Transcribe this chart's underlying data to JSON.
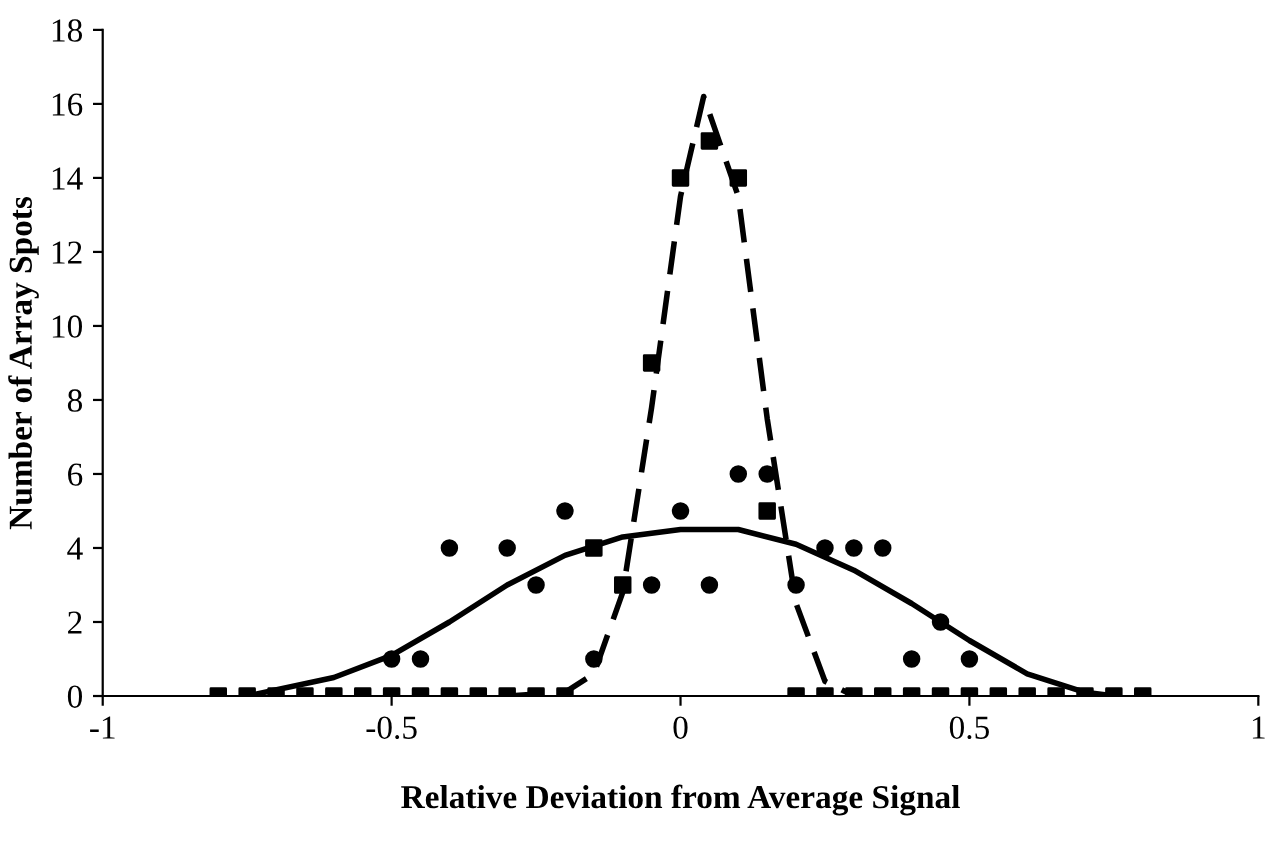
{
  "chart_data": {
    "type": "scatter",
    "xlabel": "Relative Deviation from Average Signal",
    "ylabel": "Number of Array Spots",
    "xlim": [
      -1,
      1
    ],
    "xticks": [
      -1,
      -0.5,
      0,
      0.5,
      1
    ],
    "ylim": [
      0,
      18
    ],
    "yticks": [
      0,
      2,
      4,
      6,
      8,
      10,
      12,
      14,
      16,
      18
    ],
    "grid": false,
    "legend": false,
    "series": [
      {
        "marker": "square",
        "color": "#000000",
        "x": [
          -0.8,
          -0.75,
          -0.7,
          -0.65,
          -0.6,
          -0.55,
          -0.5,
          -0.45,
          -0.4,
          -0.35,
          -0.3,
          -0.25,
          -0.2,
          -0.15,
          -0.1,
          -0.05,
          0,
          0.05,
          0.1,
          0.15,
          0.2,
          0.25,
          0.3,
          0.35,
          0.4,
          0.45,
          0.5,
          0.55,
          0.6,
          0.65,
          0.7,
          0.75,
          0.8
        ],
        "values": [
          0,
          0,
          0,
          0,
          0,
          0,
          0,
          0,
          0,
          0,
          0,
          0,
          0,
          4,
          3,
          9,
          14,
          15,
          14,
          5,
          0,
          0,
          0,
          0,
          0,
          0,
          0,
          0,
          0,
          0,
          0,
          0,
          0
        ]
      },
      {
        "marker": "circle",
        "color": "#000000",
        "x": [
          -0.5,
          -0.45,
          -0.4,
          -0.3,
          -0.25,
          -0.2,
          -0.15,
          -0.05,
          0,
          0.05,
          0.1,
          0.15,
          0.2,
          0.25,
          0.3,
          0.35,
          0.4,
          0.45,
          0.5
        ],
        "values": [
          1,
          1,
          4,
          4,
          3,
          5,
          1,
          3,
          5,
          3,
          6,
          6,
          3,
          4,
          4,
          4,
          1,
          2,
          1
        ]
      },
      {
        "type": "line",
        "line_style": "solid",
        "color": "#000000",
        "x": [
          -0.75,
          -0.6,
          -0.5,
          -0.4,
          -0.3,
          -0.2,
          -0.1,
          0,
          0.1,
          0.2,
          0.3,
          0.4,
          0.5,
          0.6,
          0.7,
          0.75
        ],
        "values": [
          0,
          0.5,
          1.1,
          2,
          3,
          3.8,
          4.3,
          4.5,
          4.5,
          4.1,
          3.4,
          2.5,
          1.5,
          0.6,
          0.1,
          0
        ]
      },
      {
        "type": "line",
        "line_style": "dashed",
        "color": "#000000",
        "x": [
          -0.3,
          -0.2,
          -0.15,
          -0.1,
          -0.05,
          0,
          0.04,
          0.1,
          0.15,
          0.2,
          0.25,
          0.3
        ],
        "values": [
          0,
          0.1,
          0.6,
          2.8,
          7.8,
          13.5,
          16.2,
          13.5,
          7.5,
          2.5,
          0.4,
          0
        ]
      }
    ]
  }
}
